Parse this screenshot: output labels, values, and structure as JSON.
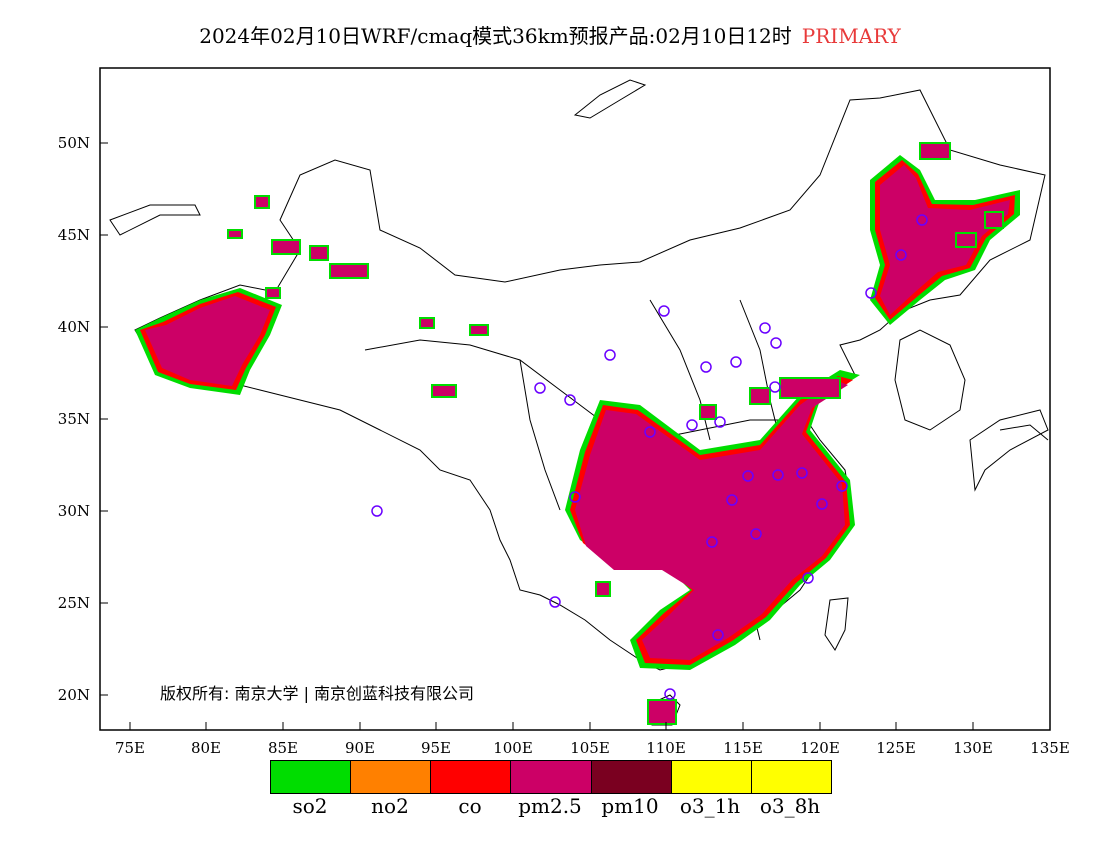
{
  "title": {
    "main": "2024年02月10日WRF/cmaq模式36km预报产品:02月10日12时",
    "tag": "PRIMARY",
    "tag_color": "#e83a3a"
  },
  "axes": {
    "lat_labels": [
      "50N",
      "45N",
      "40N",
      "35N",
      "30N",
      "25N",
      "20N"
    ],
    "lon_labels": [
      "75E",
      "80E",
      "85E",
      "90E",
      "95E",
      "100E",
      "105E",
      "110E",
      "115E",
      "120E",
      "125E",
      "130E",
      "135E"
    ]
  },
  "copyright": "版权所有: 南京大学 | 南京创蓝科技有限公司",
  "legend": [
    {
      "label": "so2",
      "color": "#00dd00"
    },
    {
      "label": "no2",
      "color": "#ff8000"
    },
    {
      "label": "co",
      "color": "#ff0000"
    },
    {
      "label": "pm2.5",
      "color": "#cc0066"
    },
    {
      "label": "pm10",
      "color": "#7a0020"
    },
    {
      "label": "o3_1h",
      "color": "#ffff00"
    },
    {
      "label": "o3_8h",
      "color": "#ffff00"
    }
  ],
  "colors": {
    "pollution_fill": "#cc0066",
    "pollution_edge_red": "#ff0000",
    "pollution_edge_green": "#00dd00",
    "station_marker": "#6a00ff",
    "border": "#000000"
  },
  "map": {
    "lon_range": [
      73,
      135
    ],
    "lat_range": [
      18,
      54
    ]
  }
}
